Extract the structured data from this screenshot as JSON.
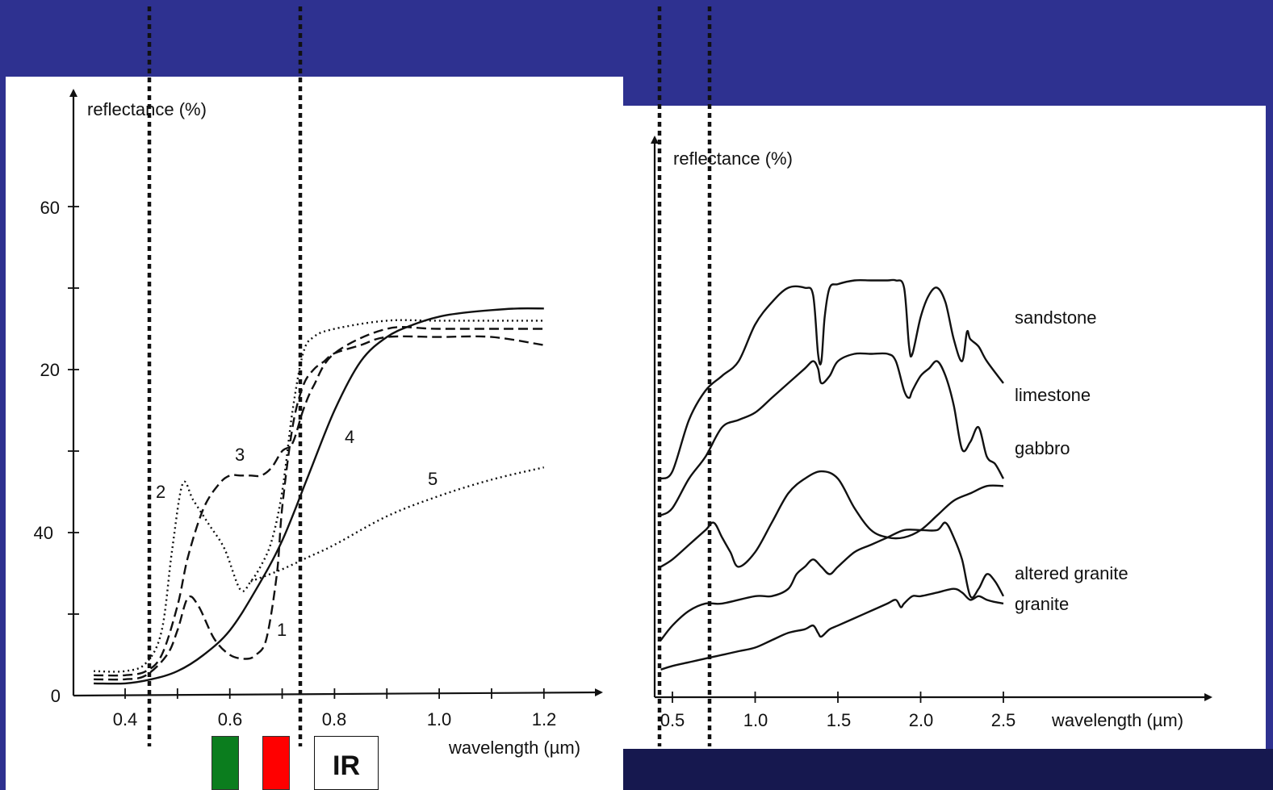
{
  "colors": {
    "background": "#2e3190",
    "panel": "#ffffff",
    "green_band": "#0b7d1e",
    "red_band": "#ff0000"
  },
  "bands": {
    "green_label": "",
    "red_label": "",
    "ir_label": "IR"
  },
  "chart_data": [
    {
      "type": "line",
      "ylabel": "reflectance (%)",
      "xlabel": "wavelength (µm)",
      "xlim": [
        0.33,
        1.22
      ],
      "ylim": [
        0,
        60
      ],
      "x_ticks": [
        "0.4",
        "0.6",
        "0.8",
        "1.0",
        "1.2"
      ],
      "y_ticks": [
        "0",
        "20",
        "40",
        "60"
      ],
      "grid": false,
      "series": [
        {
          "name": "1",
          "style": "dashed",
          "x": [
            0.34,
            0.4,
            0.44,
            0.48,
            0.5,
            0.52,
            0.54,
            0.57,
            0.6,
            0.63,
            0.65,
            0.67,
            0.69,
            0.7,
            0.72,
            0.74,
            0.76,
            0.78,
            0.8,
            0.85,
            0.9,
            1.0,
            1.1,
            1.2
          ],
          "y": [
            2,
            2,
            2.5,
            5,
            8,
            12,
            11,
            7,
            5,
            4.5,
            5,
            7,
            15,
            23,
            33,
            38,
            40,
            41,
            42,
            43,
            44,
            44,
            44,
            43
          ]
        },
        {
          "name": "2",
          "style": "dotted",
          "x": [
            0.34,
            0.4,
            0.44,
            0.47,
            0.49,
            0.51,
            0.53,
            0.56,
            0.59,
            0.62,
            0.64,
            0.66,
            0.68,
            0.7,
            0.72,
            0.74,
            0.76,
            0.8,
            0.9,
            1.0,
            1.2
          ],
          "y": [
            3,
            3,
            4,
            8,
            18,
            26,
            24,
            21,
            18,
            13,
            14,
            16,
            19,
            25,
            35,
            42,
            44,
            45,
            46,
            46,
            46
          ]
        },
        {
          "name": "3",
          "style": "dashed",
          "x": [
            0.34,
            0.4,
            0.44,
            0.47,
            0.5,
            0.52,
            0.55,
            0.58,
            0.6,
            0.62,
            0.64,
            0.66,
            0.68,
            0.7,
            0.72,
            0.74,
            0.76,
            0.8,
            0.9,
            1.0,
            1.2
          ],
          "y": [
            2.5,
            2.5,
            3,
            5,
            11,
            17,
            23,
            26,
            27,
            27,
            27,
            27,
            28,
            30,
            31,
            35,
            38,
            42,
            45,
            45,
            45
          ]
        },
        {
          "name": "4",
          "style": "solid",
          "x": [
            0.34,
            0.4,
            0.45,
            0.5,
            0.55,
            0.6,
            0.65,
            0.7,
            0.75,
            0.8,
            0.85,
            0.9,
            0.95,
            1.0,
            1.05,
            1.1,
            1.15,
            1.2
          ],
          "y": [
            1.5,
            1.5,
            2,
            3,
            5,
            8,
            13,
            19,
            27,
            35,
            41,
            44,
            45.5,
            46.5,
            47,
            47.3,
            47.5,
            47.5
          ]
        },
        {
          "name": "5",
          "style": "dotted",
          "x": [
            0.64,
            0.7,
            0.75,
            0.8,
            0.9,
            1.0,
            1.1,
            1.2
          ],
          "y": [
            14,
            15.5,
            17,
            18.5,
            22,
            24.5,
            26.5,
            28
          ]
        }
      ]
    },
    {
      "type": "line",
      "ylabel": "reflectance (%)",
      "xlabel": "wavelength (µm)",
      "xlim": [
        0.4,
        2.6
      ],
      "x_ticks": [
        "0.5",
        "1.0",
        "1.5",
        "2.0",
        "2.5"
      ],
      "grid": false,
      "series": [
        {
          "name": "sandstone",
          "x": [
            0.43,
            0.5,
            0.6,
            0.7,
            0.8,
            0.9,
            1.0,
            1.1,
            1.2,
            1.3,
            1.35,
            1.38,
            1.4,
            1.42,
            1.45,
            1.5,
            1.6,
            1.7,
            1.8,
            1.85,
            1.9,
            1.93,
            1.95,
            2.0,
            2.05,
            2.1,
            2.15,
            2.2,
            2.25,
            2.28,
            2.3,
            2.35,
            2.4,
            2.5
          ],
          "y": [
            28,
            29,
            36,
            40,
            42,
            44,
            49,
            52,
            54,
            54,
            53,
            45,
            44,
            50,
            54,
            54.5,
            55,
            55,
            55,
            55,
            54,
            46,
            45,
            50,
            53,
            54,
            52,
            47,
            44,
            48,
            47,
            46,
            44,
            41
          ]
        },
        {
          "name": "limestone",
          "x": [
            0.43,
            0.5,
            0.6,
            0.7,
            0.8,
            0.9,
            1.0,
            1.1,
            1.2,
            1.3,
            1.35,
            1.38,
            1.4,
            1.45,
            1.5,
            1.6,
            1.7,
            1.8,
            1.85,
            1.9,
            1.93,
            1.95,
            2.0,
            2.05,
            2.1,
            2.15,
            2.2,
            2.25,
            2.3,
            2.35,
            2.4,
            2.45,
            2.5
          ],
          "y": [
            23,
            24,
            28,
            31,
            35,
            36,
            37,
            39,
            41,
            43,
            44,
            43,
            41,
            42,
            44,
            45,
            45,
            45,
            44,
            40,
            39,
            40,
            42,
            43,
            44,
            42,
            38,
            32,
            33,
            35,
            31,
            30,
            28
          ]
        },
        {
          "name": "gabbro",
          "x": [
            0.43,
            0.5,
            0.6,
            0.7,
            0.75,
            0.8,
            0.85,
            0.9,
            1.0,
            1.1,
            1.2,
            1.3,
            1.4,
            1.5,
            1.6,
            1.7,
            1.8,
            1.9,
            2.0,
            2.1,
            2.2,
            2.3,
            2.4,
            2.5
          ],
          "y": [
            16,
            17,
            19,
            21,
            22,
            20,
            18,
            16,
            18,
            22,
            26,
            28,
            29,
            28,
            24,
            21,
            20,
            20,
            21,
            23,
            25,
            26,
            27,
            27
          ]
        },
        {
          "name": "altered granite",
          "x": [
            0.43,
            0.5,
            0.6,
            0.7,
            0.8,
            1.0,
            1.1,
            1.2,
            1.25,
            1.3,
            1.35,
            1.4,
            1.45,
            1.5,
            1.6,
            1.7,
            1.8,
            1.9,
            2.0,
            2.1,
            2.15,
            2.2,
            2.25,
            2.3,
            2.35,
            2.4,
            2.45,
            2.5
          ],
          "y": [
            6,
            8,
            10,
            11,
            11,
            12,
            12,
            13,
            15,
            16,
            17,
            16,
            15,
            16,
            18,
            19,
            20,
            21,
            21,
            21,
            22,
            20,
            17,
            12,
            13,
            15,
            14,
            12
          ]
        },
        {
          "name": "granite",
          "x": [
            0.43,
            0.5,
            0.6,
            0.7,
            0.8,
            0.9,
            1.0,
            1.1,
            1.2,
            1.3,
            1.35,
            1.38,
            1.4,
            1.45,
            1.5,
            1.6,
            1.7,
            1.8,
            1.85,
            1.88,
            1.9,
            1.95,
            2.0,
            2.1,
            2.2,
            2.25,
            2.3,
            2.35,
            2.4,
            2.45,
            2.5
          ],
          "y": [
            2,
            2.5,
            3,
            3.5,
            4,
            4.5,
            5,
            6,
            7,
            7.5,
            8,
            7,
            6.5,
            7.5,
            8,
            9,
            10,
            11,
            11.5,
            10.5,
            11,
            12,
            12,
            12.5,
            13,
            12.5,
            11.5,
            12,
            11.5,
            11.2,
            11
          ]
        }
      ]
    }
  ]
}
